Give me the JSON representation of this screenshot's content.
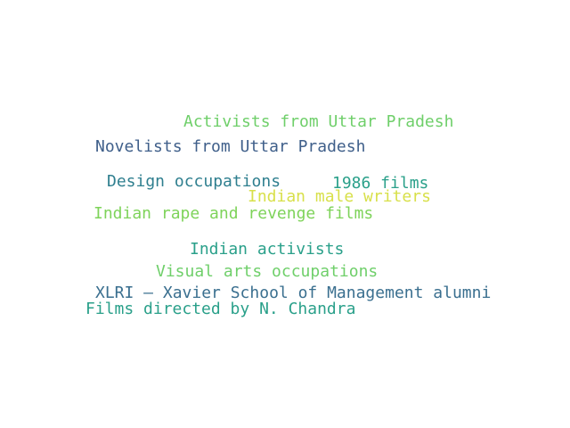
{
  "words": [
    {
      "text": "Activists from Uttar Pradesh",
      "color": "#6fcf6a"
    },
    {
      "text": "Novelists from Uttar Pradesh",
      "color": "#3f5f8a"
    },
    {
      "text": "Design occupations",
      "color": "#2f7f8f"
    },
    {
      "text": "1986 films",
      "color": "#2aa08a"
    },
    {
      "text": "Indian male writers",
      "color": "#d8e04a"
    },
    {
      "text": "Indian rape and revenge films",
      "color": "#7ed35a"
    },
    {
      "text": "Indian activists",
      "color": "#2aa08a"
    },
    {
      "text": "Visual arts occupations",
      "color": "#6fcf6a"
    },
    {
      "text": "XLRI – Xavier School of Management alumni",
      "color": "#3a6f8f"
    },
    {
      "text": "Films directed by N. Chandra",
      "color": "#2aa08a"
    }
  ]
}
